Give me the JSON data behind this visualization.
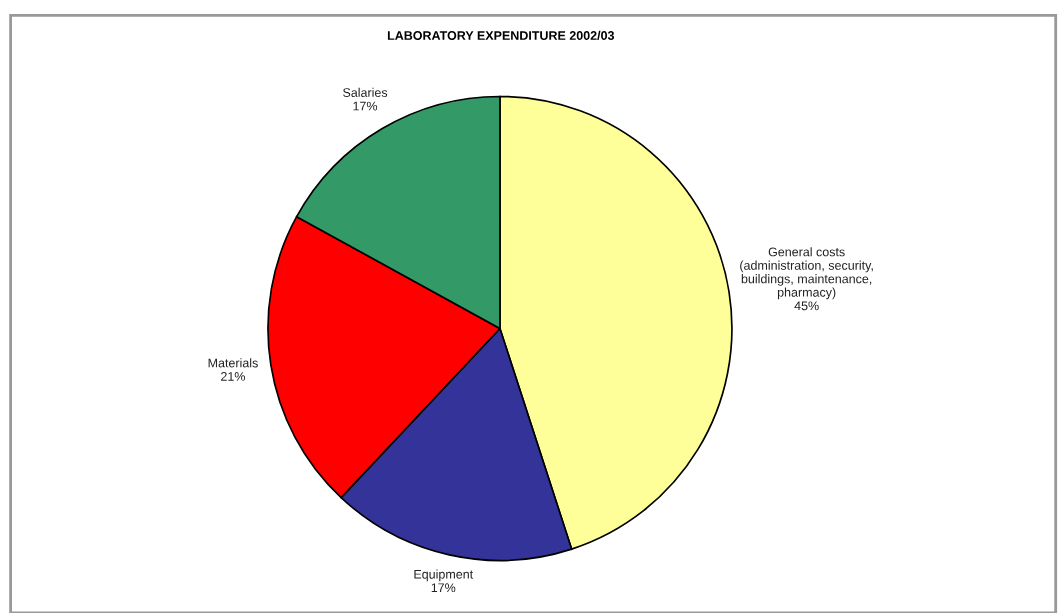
{
  "chart_data": {
    "type": "pie",
    "title": "LABORATORY EXPENDITURE 2002/03",
    "categories": [
      "General costs\n(administration, security,\nbuildings, maintenance,\npharmacy)",
      "Equipment",
      "Materials",
      "Salaries"
    ],
    "values": [
      45,
      17,
      21,
      17
    ],
    "colors": [
      "#ffff99",
      "#333399",
      "#ff0000",
      "#339966"
    ],
    "value_labels": [
      "45%",
      "17%",
      "21%",
      "17%"
    ],
    "legend": false
  }
}
